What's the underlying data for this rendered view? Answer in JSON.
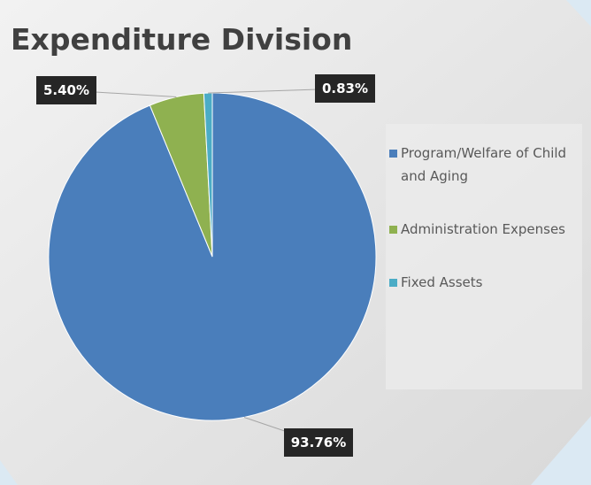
{
  "chart_data": {
    "type": "pie",
    "title": "Expenditure Division",
    "categories": [
      "Program/Welfare of Child and Aging",
      "Administration Expenses",
      "Fixed Assets"
    ],
    "values": [
      93.76,
      5.4,
      0.83
    ],
    "value_labels": [
      "93.76%",
      "5.40%",
      "0.83%"
    ],
    "colors": [
      "#4a7ebb",
      "#8fb150",
      "#4bacc6"
    ],
    "legend": "right"
  }
}
